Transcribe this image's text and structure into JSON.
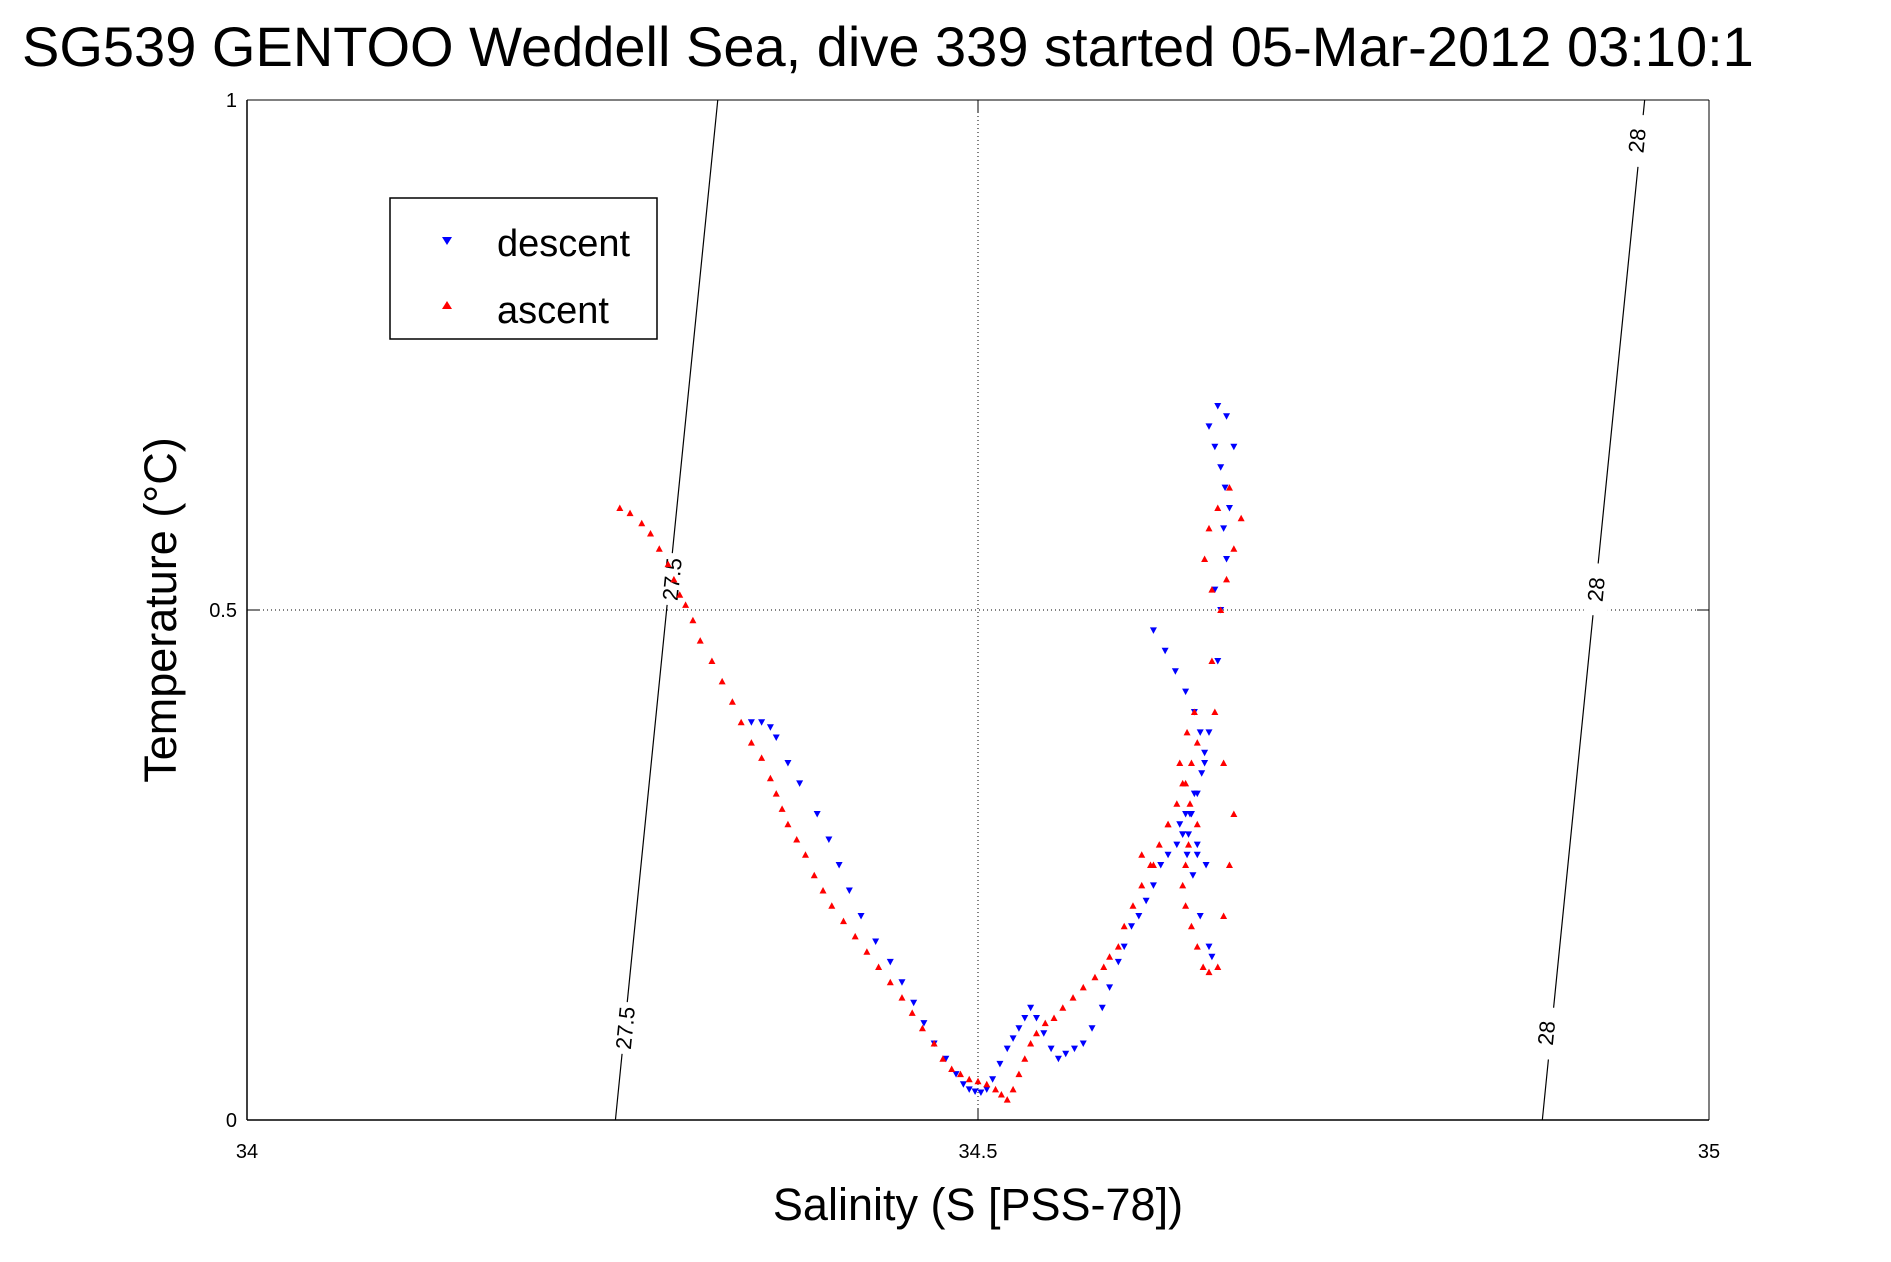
{
  "chart_data": {
    "type": "scatter",
    "title": "SG539 GENTOO Weddell Sea, dive 339 started 05-Mar-2012 03:10:1",
    "xlabel": "Salinity (S [PSS-78])",
    "ylabel": "Temperature (°C)",
    "xlim": [
      34,
      35
    ],
    "ylim": [
      0,
      1
    ],
    "xticks": [
      34,
      34.5,
      35
    ],
    "yticks": [
      0,
      0.5,
      1
    ],
    "xtick_labels": [
      "34",
      "34.5",
      "35"
    ],
    "ytick_labels": [
      "0",
      "0.5",
      "1"
    ],
    "grid": true,
    "legend_position": "top-left",
    "series": [
      {
        "name": "descent",
        "marker": "triangle-down",
        "color": "#0000ff",
        "x": [
          34.345,
          34.352,
          34.358,
          34.362,
          34.37,
          34.378,
          34.39,
          34.398,
          34.405,
          34.412,
          34.42,
          34.43,
          34.44,
          34.448,
          34.456,
          34.463,
          34.47,
          34.478,
          34.485,
          34.49,
          34.494,
          34.498,
          34.502,
          34.506,
          34.51,
          34.515,
          34.52,
          34.524,
          34.528,
          34.532,
          34.536,
          34.54,
          34.545,
          34.55,
          34.555,
          34.56,
          34.566,
          34.572,
          34.578,
          34.585,
          34.59,
          34.596,
          34.6,
          34.605,
          34.61,
          34.615,
          34.62,
          34.625,
          34.63,
          34.636,
          34.64,
          34.645,
          34.65,
          34.655,
          34.658,
          34.62,
          34.628,
          34.635,
          34.642,
          34.648,
          34.652,
          34.655,
          34.653,
          34.648,
          34.642,
          34.64,
          34.643,
          34.647,
          34.652,
          34.658,
          34.66,
          34.664,
          34.666,
          34.67,
          34.672,
          34.669,
          34.666,
          34.662,
          34.658,
          34.664,
          34.67,
          34.675,
          34.668,
          34.662,
          34.644,
          34.65,
          34.656,
          34.638,
          34.646,
          34.65
        ],
        "y": [
          0.39,
          0.39,
          0.385,
          0.375,
          0.35,
          0.33,
          0.3,
          0.275,
          0.25,
          0.225,
          0.2,
          0.175,
          0.155,
          0.135,
          0.115,
          0.095,
          0.075,
          0.06,
          0.045,
          0.035,
          0.03,
          0.028,
          0.027,
          0.03,
          0.04,
          0.055,
          0.07,
          0.08,
          0.09,
          0.1,
          0.11,
          0.1,
          0.085,
          0.07,
          0.06,
          0.065,
          0.07,
          0.075,
          0.09,
          0.11,
          0.13,
          0.155,
          0.17,
          0.19,
          0.2,
          0.215,
          0.23,
          0.25,
          0.26,
          0.27,
          0.28,
          0.3,
          0.32,
          0.35,
          0.38,
          0.48,
          0.46,
          0.44,
          0.42,
          0.4,
          0.38,
          0.36,
          0.34,
          0.32,
          0.3,
          0.28,
          0.26,
          0.24,
          0.2,
          0.17,
          0.16,
          0.45,
          0.5,
          0.55,
          0.6,
          0.62,
          0.64,
          0.66,
          0.68,
          0.7,
          0.69,
          0.66,
          0.58,
          0.52,
          0.28,
          0.27,
          0.25,
          0.29,
          0.3,
          0.26
        ]
      },
      {
        "name": "ascent",
        "marker": "triangle-up",
        "color": "#ff0000",
        "x": [
          34.255,
          34.262,
          34.27,
          34.276,
          34.282,
          34.288,
          34.292,
          34.296,
          34.3,
          34.305,
          34.31,
          34.318,
          34.325,
          34.332,
          34.338,
          34.345,
          34.352,
          34.358,
          34.362,
          34.366,
          34.37,
          34.376,
          34.382,
          34.388,
          34.394,
          34.4,
          34.408,
          34.416,
          34.424,
          34.432,
          34.44,
          34.448,
          34.455,
          34.462,
          34.47,
          34.476,
          34.482,
          34.488,
          34.494,
          34.5,
          34.506,
          34.512,
          34.516,
          34.52,
          34.524,
          34.528,
          34.532,
          34.536,
          34.54,
          34.546,
          34.552,
          34.558,
          34.565,
          34.572,
          34.58,
          34.586,
          34.59,
          34.596,
          34.6,
          34.606,
          34.612,
          34.618,
          34.624,
          34.63,
          34.636,
          34.642,
          34.646,
          34.65,
          34.648,
          34.643,
          34.638,
          34.64,
          34.645,
          34.65,
          34.644,
          34.642,
          34.64,
          34.642,
          34.646,
          34.65,
          34.654,
          34.658,
          34.664,
          34.668,
          34.672,
          34.675,
          34.668,
          34.662,
          34.66,
          34.666,
          34.67,
          34.675,
          34.68,
          34.672,
          34.664,
          34.658,
          34.655,
          34.66,
          34.62,
          34.63,
          34.612
        ],
        "y": [
          0.6,
          0.595,
          0.585,
          0.575,
          0.56,
          0.545,
          0.53,
          0.515,
          0.505,
          0.49,
          0.47,
          0.45,
          0.43,
          0.41,
          0.39,
          0.37,
          0.355,
          0.335,
          0.32,
          0.305,
          0.29,
          0.275,
          0.26,
          0.24,
          0.225,
          0.21,
          0.195,
          0.18,
          0.165,
          0.15,
          0.135,
          0.12,
          0.105,
          0.09,
          0.075,
          0.06,
          0.05,
          0.045,
          0.04,
          0.038,
          0.035,
          0.03,
          0.025,
          0.02,
          0.03,
          0.045,
          0.06,
          0.075,
          0.085,
          0.095,
          0.1,
          0.11,
          0.12,
          0.13,
          0.14,
          0.15,
          0.16,
          0.17,
          0.19,
          0.21,
          0.23,
          0.25,
          0.27,
          0.29,
          0.31,
          0.33,
          0.35,
          0.37,
          0.4,
          0.38,
          0.35,
          0.33,
          0.31,
          0.29,
          0.27,
          0.25,
          0.23,
          0.21,
          0.19,
          0.17,
          0.15,
          0.145,
          0.15,
          0.2,
          0.25,
          0.3,
          0.35,
          0.4,
          0.45,
          0.5,
          0.53,
          0.56,
          0.59,
          0.62,
          0.6,
          0.58,
          0.55,
          0.52,
          0.25,
          0.29,
          0.26
        ]
      }
    ],
    "contours": [
      {
        "label": "27.5",
        "line": [
          [
            34.252,
            0
          ],
          [
            34.322,
            1
          ]
        ],
        "label_positions": [
          [
            34.26,
            0.09
          ],
          [
            34.292,
            0.53
          ]
        ]
      },
      {
        "label": "28",
        "line": [
          [
            34.886,
            0
          ],
          [
            34.956,
            1
          ]
        ],
        "label_positions": [
          [
            34.89,
            0.085
          ],
          [
            34.924,
            0.52
          ],
          [
            34.952,
            0.96
          ]
        ]
      }
    ]
  }
}
